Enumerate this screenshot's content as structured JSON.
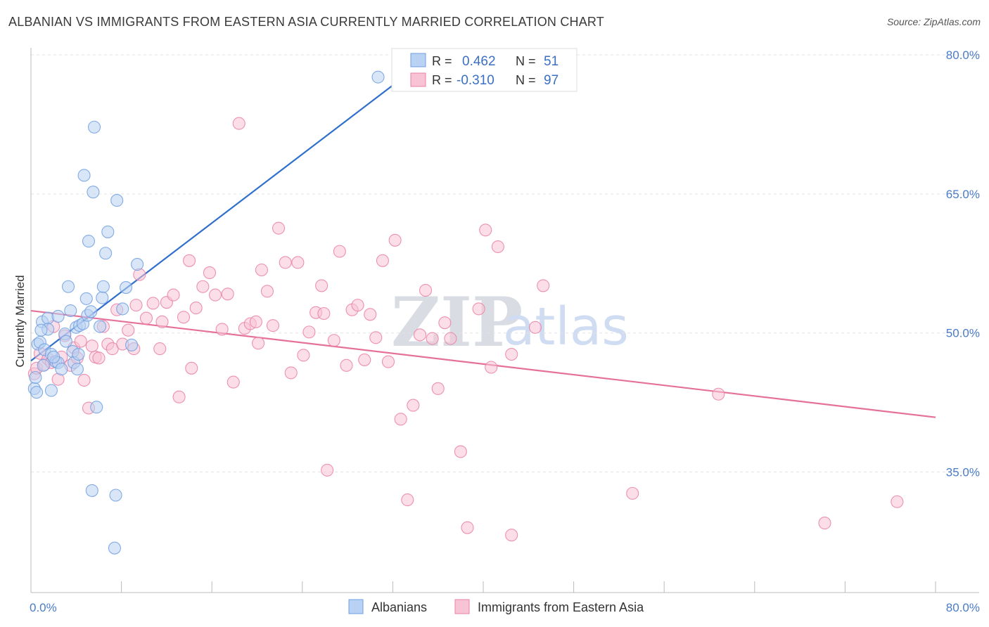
{
  "title": "ALBANIAN VS IMMIGRANTS FROM EASTERN ASIA CURRENTLY MARRIED CORRELATION CHART",
  "source": "Source: ZipAtlas.com",
  "watermark": {
    "zip": "ZIP",
    "atlas": "atlas"
  },
  "colors": {
    "blue": "#6f9fe0",
    "blue_fill": "#b9d1f3",
    "pink": "#ea80a5",
    "pink_fill": "#f7c3d5",
    "blue_line": "#2f6fcc",
    "pink_line": "#e5709a",
    "tick_text": "#4a7cc9"
  },
  "legend": {
    "r_label": "R =",
    "n_label": "N =",
    "series": [
      {
        "r": "0.462",
        "n": "51"
      },
      {
        "r": "-0.310",
        "n": "97"
      }
    ]
  },
  "bottom_legend": [
    "Albanians",
    "Immigrants from Eastern Asia"
  ],
  "chart_data": {
    "type": "scatter",
    "title": "ALBANIAN VS IMMIGRANTS FROM EASTERN ASIA CURRENTLY MARRIED CORRELATION CHART",
    "xlabel": "",
    "ylabel": "Currently Married",
    "xlim": [
      0,
      80
    ],
    "ylim": [
      22,
      80
    ],
    "x_tick_labels": [
      "0.0%",
      "80.0%"
    ],
    "y_ticks": [
      35,
      50,
      65,
      80
    ],
    "y_tick_labels": [
      "35.0%",
      "50.0%",
      "65.0%",
      "80.0%"
    ],
    "grid": true,
    "legend_position": "top-center",
    "series": [
      {
        "name": "Albanians",
        "trend": {
          "x": [
            0,
            35
          ],
          "y": [
            47.0,
            79.5
          ]
        },
        "points": [
          [
            0.3,
            44.0
          ],
          [
            0.5,
            43.6
          ],
          [
            0.6,
            48.8
          ],
          [
            0.8,
            49.0
          ],
          [
            1.0,
            51.2
          ],
          [
            1.2,
            48.2
          ],
          [
            1.5,
            51.6
          ],
          [
            1.5,
            50.4
          ],
          [
            1.8,
            47.7
          ],
          [
            1.8,
            43.8
          ],
          [
            2.2,
            46.9
          ],
          [
            2.4,
            51.8
          ],
          [
            2.4,
            46.8
          ],
          [
            2.7,
            46.1
          ],
          [
            3.0,
            49.9
          ],
          [
            3.3,
            55.0
          ],
          [
            3.5,
            52.4
          ],
          [
            3.7,
            48.0
          ],
          [
            3.8,
            46.8
          ],
          [
            4.0,
            50.6
          ],
          [
            4.1,
            46.1
          ],
          [
            4.2,
            47.7
          ],
          [
            4.3,
            50.8
          ],
          [
            4.6,
            51.0
          ],
          [
            4.7,
            67.0
          ],
          [
            4.9,
            53.7
          ],
          [
            5.0,
            51.9
          ],
          [
            5.1,
            59.9
          ],
          [
            5.4,
            33.0
          ],
          [
            5.5,
            65.2
          ],
          [
            5.6,
            72.2
          ],
          [
            5.8,
            42.0
          ],
          [
            6.1,
            50.7
          ],
          [
            6.3,
            53.8
          ],
          [
            6.4,
            55.0
          ],
          [
            6.6,
            58.6
          ],
          [
            6.8,
            60.9
          ],
          [
            7.4,
            26.8
          ],
          [
            7.5,
            32.5
          ],
          [
            7.6,
            64.3
          ],
          [
            8.1,
            52.6
          ],
          [
            8.4,
            54.9
          ],
          [
            8.9,
            48.7
          ],
          [
            9.4,
            57.4
          ],
          [
            30.7,
            77.6
          ],
          [
            0.4,
            45.2
          ],
          [
            1.1,
            46.5
          ],
          [
            2.0,
            47.4
          ],
          [
            3.1,
            49.1
          ],
          [
            0.9,
            50.3
          ],
          [
            5.3,
            52.3
          ]
        ]
      },
      {
        "name": "Immigrants from Eastern Asia",
        "trend": {
          "x": [
            0,
            80
          ],
          "y": [
            52.4,
            40.9
          ]
        },
        "points": [
          [
            0.3,
            45.6
          ],
          [
            0.5,
            46.2
          ],
          [
            0.8,
            47.8
          ],
          [
            1.2,
            46.6
          ],
          [
            1.5,
            47.2
          ],
          [
            1.8,
            46.8
          ],
          [
            2.0,
            50.7
          ],
          [
            2.4,
            45.0
          ],
          [
            2.7,
            47.4
          ],
          [
            3.0,
            49.7
          ],
          [
            3.5,
            46.5
          ],
          [
            3.8,
            48.4
          ],
          [
            4.1,
            47.3
          ],
          [
            4.4,
            49.1
          ],
          [
            4.7,
            44.9
          ],
          [
            5.1,
            41.9
          ],
          [
            5.4,
            48.6
          ],
          [
            5.7,
            47.4
          ],
          [
            6.0,
            47.3
          ],
          [
            6.4,
            50.7
          ],
          [
            6.8,
            48.8
          ],
          [
            7.2,
            48.3
          ],
          [
            7.6,
            52.5
          ],
          [
            8.1,
            48.8
          ],
          [
            8.6,
            50.3
          ],
          [
            9.1,
            48.3
          ],
          [
            9.6,
            56.3
          ],
          [
            10.2,
            51.6
          ],
          [
            10.8,
            53.2
          ],
          [
            11.4,
            48.3
          ],
          [
            12.0,
            53.3
          ],
          [
            12.6,
            54.1
          ],
          [
            13.1,
            43.1
          ],
          [
            13.5,
            51.7
          ],
          [
            14.0,
            57.8
          ],
          [
            14.6,
            52.7
          ],
          [
            15.2,
            55.0
          ],
          [
            15.8,
            56.5
          ],
          [
            16.3,
            54.1
          ],
          [
            16.9,
            50.4
          ],
          [
            17.4,
            54.2
          ],
          [
            17.9,
            44.7
          ],
          [
            18.4,
            72.6
          ],
          [
            18.9,
            50.5
          ],
          [
            19.4,
            51.0
          ],
          [
            19.9,
            51.2
          ],
          [
            20.4,
            56.8
          ],
          [
            20.9,
            54.5
          ],
          [
            21.4,
            50.8
          ],
          [
            21.9,
            61.3
          ],
          [
            22.5,
            57.6
          ],
          [
            23.0,
            45.7
          ],
          [
            23.6,
            57.6
          ],
          [
            24.1,
            47.6
          ],
          [
            24.6,
            50.1
          ],
          [
            25.2,
            52.2
          ],
          [
            25.7,
            55.1
          ],
          [
            26.2,
            35.2
          ],
          [
            26.8,
            49.2
          ],
          [
            27.3,
            58.8
          ],
          [
            27.9,
            46.5
          ],
          [
            28.4,
            52.5
          ],
          [
            28.9,
            53.0
          ],
          [
            29.5,
            47.1
          ],
          [
            30.0,
            52.0
          ],
          [
            30.5,
            49.5
          ],
          [
            31.1,
            57.8
          ],
          [
            31.6,
            46.9
          ],
          [
            32.2,
            60.0
          ],
          [
            32.7,
            40.7
          ],
          [
            33.3,
            32.0
          ],
          [
            33.8,
            42.2
          ],
          [
            34.4,
            49.8
          ],
          [
            34.9,
            54.6
          ],
          [
            35.5,
            49.4
          ],
          [
            36.0,
            44.0
          ],
          [
            36.6,
            51.1
          ],
          [
            37.1,
            49.4
          ],
          [
            38.0,
            37.2
          ],
          [
            38.6,
            29.0
          ],
          [
            39.6,
            52.6
          ],
          [
            40.2,
            61.1
          ],
          [
            40.7,
            46.3
          ],
          [
            41.3,
            59.3
          ],
          [
            42.5,
            28.2
          ],
          [
            42.5,
            47.7
          ],
          [
            44.6,
            50.6
          ],
          [
            45.3,
            55.1
          ],
          [
            53.2,
            32.7
          ],
          [
            60.8,
            43.4
          ],
          [
            70.2,
            29.5
          ],
          [
            76.6,
            31.8
          ],
          [
            14.2,
            46.2
          ],
          [
            9.3,
            53.0
          ],
          [
            25.9,
            52.1
          ],
          [
            11.6,
            51.2
          ],
          [
            20.1,
            48.9
          ]
        ]
      }
    ]
  }
}
